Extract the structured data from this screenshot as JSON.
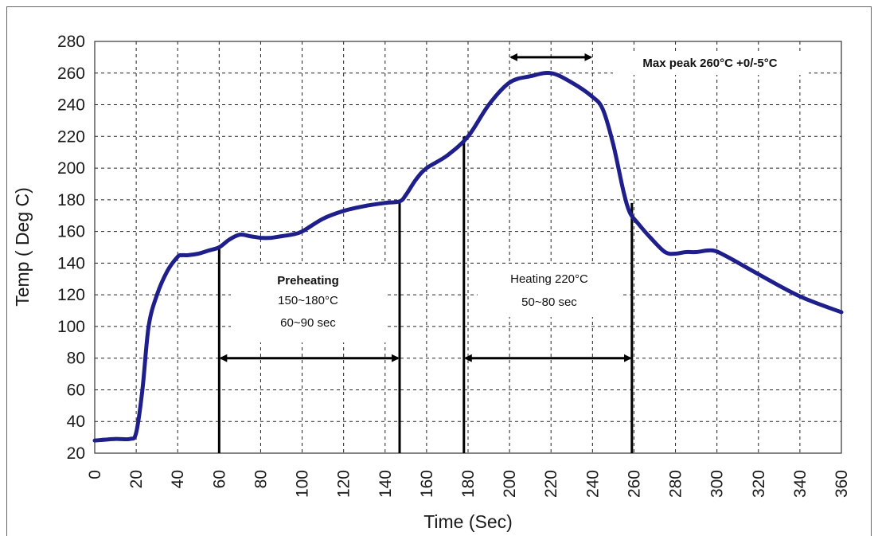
{
  "chart_data": {
    "type": "line",
    "xlabel": "Time (Sec)",
    "ylabel": "Temp ( Deg C)",
    "xlim": [
      0,
      360
    ],
    "ylim": [
      20,
      280
    ],
    "xticks": [
      0,
      20,
      40,
      60,
      80,
      100,
      120,
      140,
      160,
      180,
      200,
      220,
      240,
      260,
      280,
      300,
      320,
      340,
      360
    ],
    "yticks": [
      20,
      40,
      60,
      80,
      100,
      120,
      140,
      160,
      180,
      200,
      220,
      240,
      260,
      280
    ],
    "grid": true,
    "series": [
      {
        "color": "#1f1f8c",
        "x": [
          0,
          10,
          17,
          20,
          23,
          26,
          30,
          35,
          40,
          42,
          45,
          50,
          55,
          60,
          65,
          70,
          75,
          80,
          85,
          90,
          95,
          100,
          110,
          120,
          130,
          140,
          147,
          150,
          155,
          160,
          170,
          180,
          190,
          200,
          210,
          220,
          230,
          240,
          245,
          250,
          255,
          258,
          262,
          268,
          275,
          280,
          285,
          290,
          298,
          305,
          320,
          340,
          360
        ],
        "y": [
          28,
          29,
          29,
          33,
          60,
          100,
          120,
          135,
          144,
          145,
          145,
          146,
          148,
          150,
          155,
          158,
          157,
          156,
          156,
          157,
          158,
          160,
          168,
          173,
          176,
          178,
          179,
          183,
          193,
          200,
          208,
          220,
          240,
          254,
          258,
          260,
          254,
          245,
          237,
          215,
          185,
          172,
          165,
          156,
          147,
          146,
          147,
          147,
          148,
          144,
          133,
          119,
          109
        ]
      }
    ],
    "annotations": {
      "peak_label": "Max peak 260°C +0/-5°C",
      "preheat_title": "Preheating",
      "preheat_temp": "150~180°C",
      "preheat_time": "60~90 sec",
      "heat_title": "Heating 220°C",
      "heat_time": "50~80 sec",
      "markers": [
        {
          "x": 60,
          "y_top": 150
        },
        {
          "x": 147,
          "y_top": 179
        },
        {
          "x": 178,
          "y_top": 220
        },
        {
          "x": 259,
          "y_top": 178
        }
      ],
      "arrows": [
        {
          "x1": 60,
          "x2": 147,
          "y": 80
        },
        {
          "x1": 178,
          "x2": 259,
          "y": 80
        },
        {
          "x1": 200,
          "x2": 240,
          "y": 270
        }
      ]
    }
  }
}
